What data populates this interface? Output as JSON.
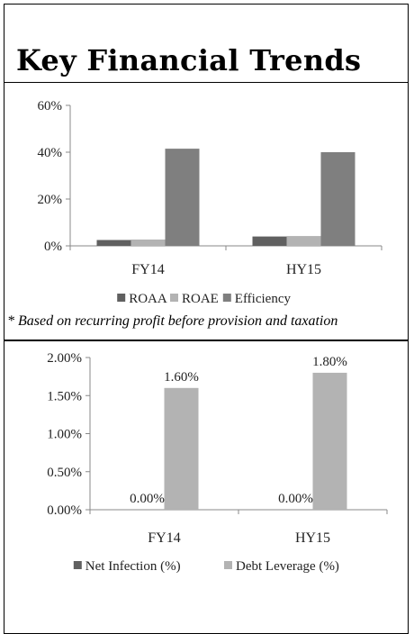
{
  "title": "Key Financial Trends",
  "footnote": "* Based on recurring profit before provision and taxation",
  "colors": {
    "dark": "#606060",
    "light": "#b3b3b3",
    "mid": "#7f7f7f",
    "axis": "#888888"
  },
  "chart_data": [
    {
      "type": "bar",
      "categories": [
        "FY14",
        "HY15"
      ],
      "series": [
        {
          "name": "ROAA",
          "values": [
            2.5,
            4.0
          ],
          "color": "#606060"
        },
        {
          "name": "ROAE",
          "values": [
            2.7,
            4.2
          ],
          "color": "#b3b3b3"
        },
        {
          "name": "Efficiency",
          "values": [
            41.5,
            40.0
          ],
          "color": "#7f7f7f"
        }
      ],
      "ylim": [
        0,
        60
      ],
      "yticks": [
        "0%",
        "20%",
        "40%",
        "60%"
      ],
      "legend": "bottom",
      "data_labels": false
    },
    {
      "type": "bar",
      "categories": [
        "FY14",
        "HY15"
      ],
      "series": [
        {
          "name": "Net Infection (%)",
          "values": [
            0.0,
            0.0
          ],
          "color": "#606060",
          "labels": [
            "0.00%",
            "0.00%"
          ]
        },
        {
          "name": "Debt Leverage (%)",
          "values": [
            1.6,
            1.8
          ],
          "color": "#b3b3b3",
          "labels": [
            "1.60%",
            "1.80%"
          ]
        }
      ],
      "ylim": [
        0,
        2.0
      ],
      "yticks": [
        "0.00%",
        "0.50%",
        "1.00%",
        "1.50%",
        "2.00%"
      ],
      "legend": "bottom",
      "data_labels": true
    }
  ]
}
